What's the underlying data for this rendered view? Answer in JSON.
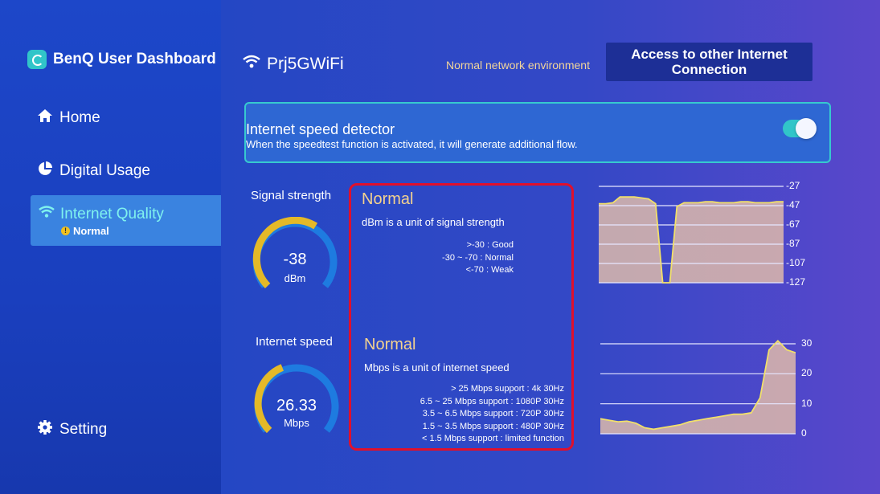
{
  "sidebar": {
    "brand": "BenQ User Dashboard",
    "items": [
      {
        "label": "Home",
        "icon": "home-icon"
      },
      {
        "label": "Digital Usage",
        "icon": "pie-chart-icon"
      },
      {
        "label": "Internet Quality",
        "icon": "wifi-icon",
        "status": "Normal"
      },
      {
        "label": "Setting",
        "icon": "gear-icon"
      }
    ]
  },
  "header": {
    "network_name": "Prj5GWiFi",
    "environment": "Normal network environment",
    "access_button": "Access to other Internet Connection"
  },
  "detector": {
    "title": "Internet speed detector",
    "description": "When the speedtest function is activated, it will generate additional flow.",
    "enabled": true
  },
  "signal": {
    "title": "Signal strength",
    "value": "-38",
    "unit": "dBm",
    "status": "Normal",
    "explanation": "dBm is a unit of signal strength",
    "ranges": [
      ">-30 : Good",
      "-30 ~ -70 : Normal",
      "<-70 : Weak"
    ],
    "gauge_fraction": 0.62
  },
  "speed": {
    "title": "Internet speed",
    "value": "26.33",
    "unit": "Mbps",
    "status": "Normal",
    "explanation": "Mbps is a unit of internet speed",
    "ranges": [
      "> 25 Mbps support : 4k 30Hz",
      "6.5 ~ 25 Mbps support : 1080P 30Hz",
      "3.5 ~ 6.5 Mbps support : 720P 30Hz",
      "1.5 ~ 3.5 Mbps support : 480P 30Hz",
      "< 1.5 Mbps support : limited function"
    ],
    "gauge_fraction": 0.42
  },
  "chart_data": [
    {
      "type": "area",
      "y_ticks": [
        "-27",
        "-47",
        "-67",
        "-87",
        "-107",
        "-127"
      ],
      "ylim": [
        -127,
        -27
      ],
      "values": [
        -45,
        -45,
        -44,
        -38,
        -38,
        -38,
        -39,
        -40,
        -45,
        -127,
        -127,
        -48,
        -44,
        -44,
        -44,
        -43,
        -43,
        -44,
        -44,
        -44,
        -43,
        -43,
        -44,
        -44,
        -44,
        -43,
        -43
      ]
    },
    {
      "type": "area",
      "y_ticks": [
        "30",
        "20",
        "10",
        "0"
      ],
      "ylim": [
        0,
        30
      ],
      "values": [
        5,
        4.5,
        4,
        4.2,
        3.5,
        2,
        1.5,
        2,
        2.5,
        3,
        4,
        4.5,
        5,
        5.5,
        6,
        6.5,
        6.5,
        7,
        12,
        28,
        31,
        28,
        27
      ]
    }
  ]
}
